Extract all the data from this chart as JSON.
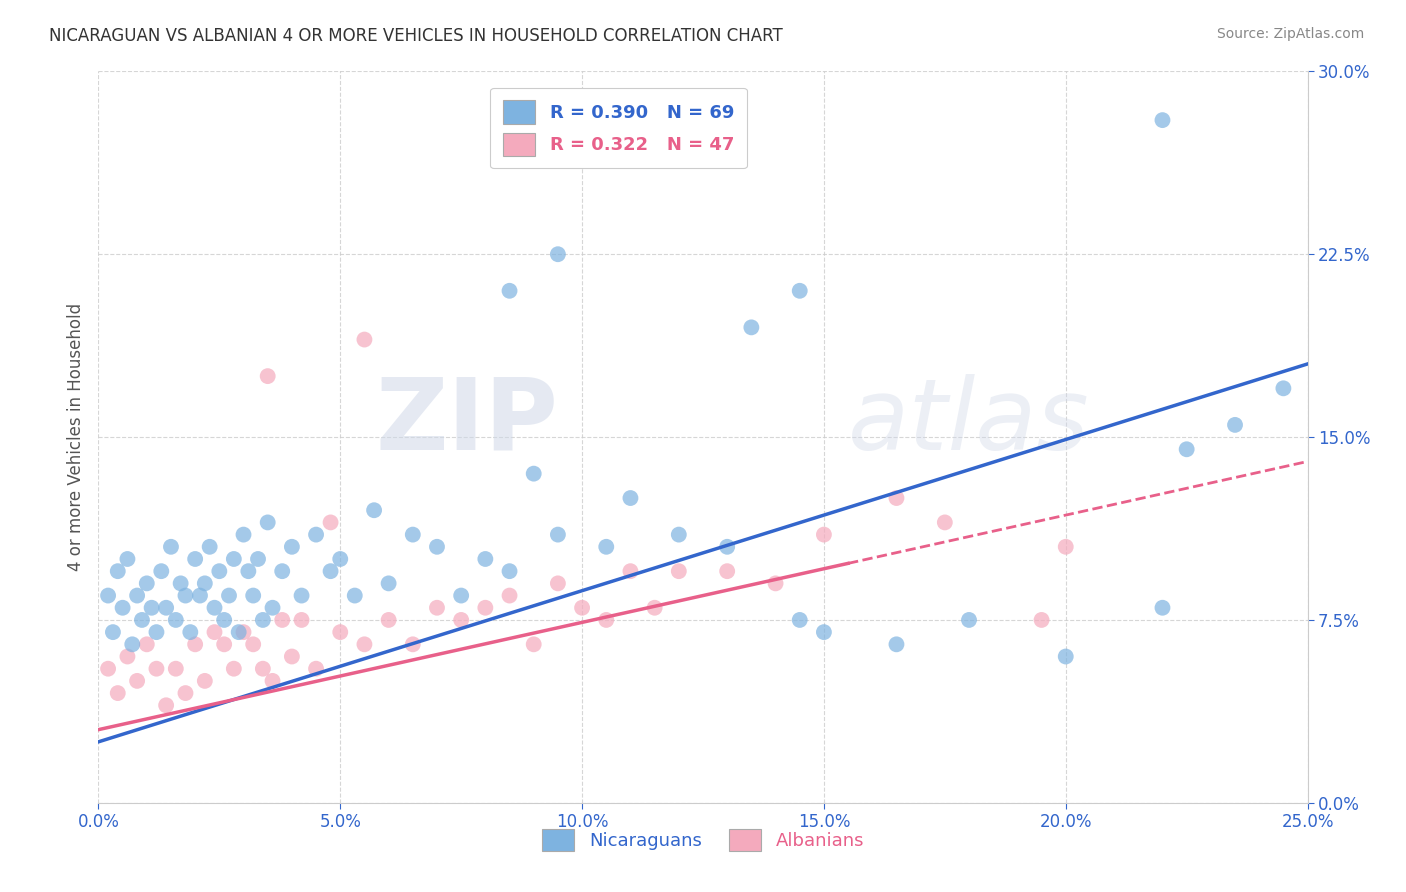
{
  "title": "NICARAGUAN VS ALBANIAN 4 OR MORE VEHICLES IN HOUSEHOLD CORRELATION CHART",
  "source": "Source: ZipAtlas.com",
  "xlabel_blue": "Nicaraguans",
  "xlabel_pink": "Albanians",
  "ylabel": "4 or more Vehicles in Household",
  "xlim": [
    0.0,
    25.0
  ],
  "ylim": [
    0.0,
    30.0
  ],
  "xticks": [
    0.0,
    5.0,
    10.0,
    15.0,
    20.0,
    25.0
  ],
  "yticks": [
    0.0,
    7.5,
    15.0,
    22.5,
    30.0
  ],
  "blue_R": 0.39,
  "blue_N": 69,
  "pink_R": 0.322,
  "pink_N": 47,
  "blue_color": "#7EB3E0",
  "pink_color": "#F4AABD",
  "blue_line_color": "#3366CC",
  "pink_line_color": "#E8608A",
  "background_color": "#FFFFFF",
  "grid_color": "#CCCCCC",
  "watermark_zip": "ZIP",
  "watermark_atlas": "atlas",
  "title_color": "#333333",
  "blue_scatter_x": [
    0.2,
    0.3,
    0.4,
    0.5,
    0.6,
    0.7,
    0.8,
    0.9,
    1.0,
    1.1,
    1.2,
    1.3,
    1.4,
    1.5,
    1.6,
    1.7,
    1.8,
    1.9,
    2.0,
    2.1,
    2.2,
    2.3,
    2.4,
    2.5,
    2.6,
    2.7,
    2.8,
    2.9,
    3.0,
    3.1,
    3.2,
    3.3,
    3.4,
    3.5,
    3.6,
    3.8,
    4.0,
    4.2,
    4.5,
    4.8,
    5.0,
    5.3,
    5.7,
    6.0,
    6.5,
    7.0,
    7.5,
    8.0,
    8.5,
    9.0,
    9.5,
    10.5,
    11.0,
    12.0,
    13.0,
    14.5,
    15.0,
    16.5,
    18.0,
    20.0,
    22.0,
    22.5,
    23.5,
    24.5,
    8.5,
    9.5,
    13.5,
    14.5,
    22.0
  ],
  "blue_scatter_y": [
    8.5,
    7.0,
    9.5,
    8.0,
    10.0,
    6.5,
    8.5,
    7.5,
    9.0,
    8.0,
    7.0,
    9.5,
    8.0,
    10.5,
    7.5,
    9.0,
    8.5,
    7.0,
    10.0,
    8.5,
    9.0,
    10.5,
    8.0,
    9.5,
    7.5,
    8.5,
    10.0,
    7.0,
    11.0,
    9.5,
    8.5,
    10.0,
    7.5,
    11.5,
    8.0,
    9.5,
    10.5,
    8.5,
    11.0,
    9.5,
    10.0,
    8.5,
    12.0,
    9.0,
    11.0,
    10.5,
    8.5,
    10.0,
    9.5,
    13.5,
    11.0,
    10.5,
    12.5,
    11.0,
    10.5,
    7.5,
    7.0,
    6.5,
    7.5,
    6.0,
    8.0,
    14.5,
    15.5,
    17.0,
    21.0,
    22.5,
    19.5,
    21.0,
    28.0
  ],
  "pink_scatter_x": [
    0.2,
    0.4,
    0.6,
    0.8,
    1.0,
    1.2,
    1.4,
    1.6,
    1.8,
    2.0,
    2.2,
    2.4,
    2.6,
    2.8,
    3.0,
    3.2,
    3.4,
    3.6,
    3.8,
    4.0,
    4.2,
    4.5,
    5.0,
    5.5,
    6.0,
    6.5,
    7.0,
    7.5,
    8.0,
    8.5,
    9.0,
    9.5,
    10.0,
    10.5,
    11.0,
    11.5,
    12.0,
    13.0,
    14.0,
    15.0,
    16.5,
    17.5,
    19.5,
    3.5,
    4.8,
    5.5,
    20.0
  ],
  "pink_scatter_y": [
    5.5,
    4.5,
    6.0,
    5.0,
    6.5,
    5.5,
    4.0,
    5.5,
    4.5,
    6.5,
    5.0,
    7.0,
    6.5,
    5.5,
    7.0,
    6.5,
    5.5,
    5.0,
    7.5,
    6.0,
    7.5,
    5.5,
    7.0,
    6.5,
    7.5,
    6.5,
    8.0,
    7.5,
    8.0,
    8.5,
    6.5,
    9.0,
    8.0,
    7.5,
    9.5,
    8.0,
    9.5,
    9.5,
    9.0,
    11.0,
    12.5,
    11.5,
    7.5,
    17.5,
    11.5,
    19.0,
    10.5
  ],
  "pink_solid_x_max": 15.5
}
